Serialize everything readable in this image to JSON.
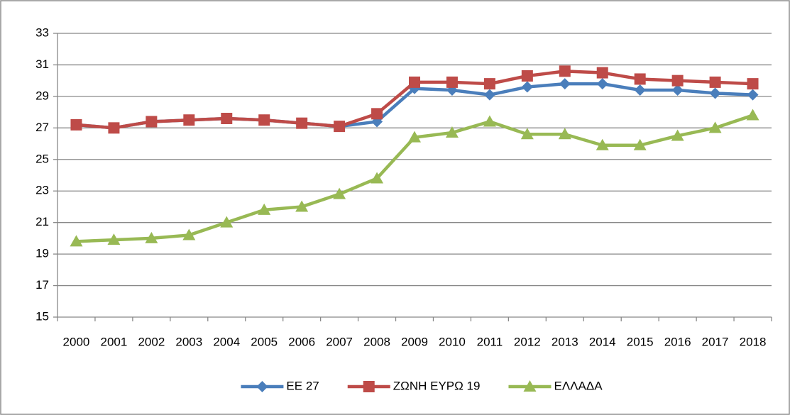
{
  "chart_data": {
    "type": "line",
    "categories": [
      "2000",
      "2001",
      "2002",
      "2003",
      "2004",
      "2005",
      "2006",
      "2007",
      "2008",
      "2009",
      "2010",
      "2011",
      "2012",
      "2013",
      "2014",
      "2015",
      "2016",
      "2017",
      "2018"
    ],
    "series": [
      {
        "name": "ΕΕ 27",
        "color": "#4a7ebb",
        "marker": "diamond",
        "values": [
          27.2,
          27.0,
          27.4,
          27.5,
          27.6,
          27.5,
          27.3,
          27.1,
          27.4,
          29.5,
          29.4,
          29.1,
          29.6,
          29.8,
          29.8,
          29.4,
          29.4,
          29.2,
          29.1
        ]
      },
      {
        "name": "ΖΩΝΗ ΕΥΡΩ 19",
        "color": "#be4b48",
        "marker": "square",
        "values": [
          27.2,
          27.0,
          27.4,
          27.5,
          27.6,
          27.5,
          27.3,
          27.1,
          27.9,
          29.9,
          29.9,
          29.8,
          30.3,
          30.6,
          30.5,
          30.1,
          30.0,
          29.9,
          29.8
        ]
      },
      {
        "name": "ΕΛΛΑΔΑ",
        "color": "#98b954",
        "marker": "triangle",
        "values": [
          19.8,
          19.9,
          20.0,
          20.2,
          21.0,
          21.8,
          22.0,
          22.8,
          23.8,
          26.4,
          26.7,
          27.4,
          26.6,
          26.6,
          25.9,
          25.9,
          26.5,
          27.0,
          27.8
        ]
      }
    ],
    "ylim": [
      15,
      33
    ],
    "yticks": [
      15,
      17,
      19,
      21,
      23,
      25,
      27,
      29,
      31,
      33
    ],
    "grid": true,
    "legend": "bottom"
  }
}
